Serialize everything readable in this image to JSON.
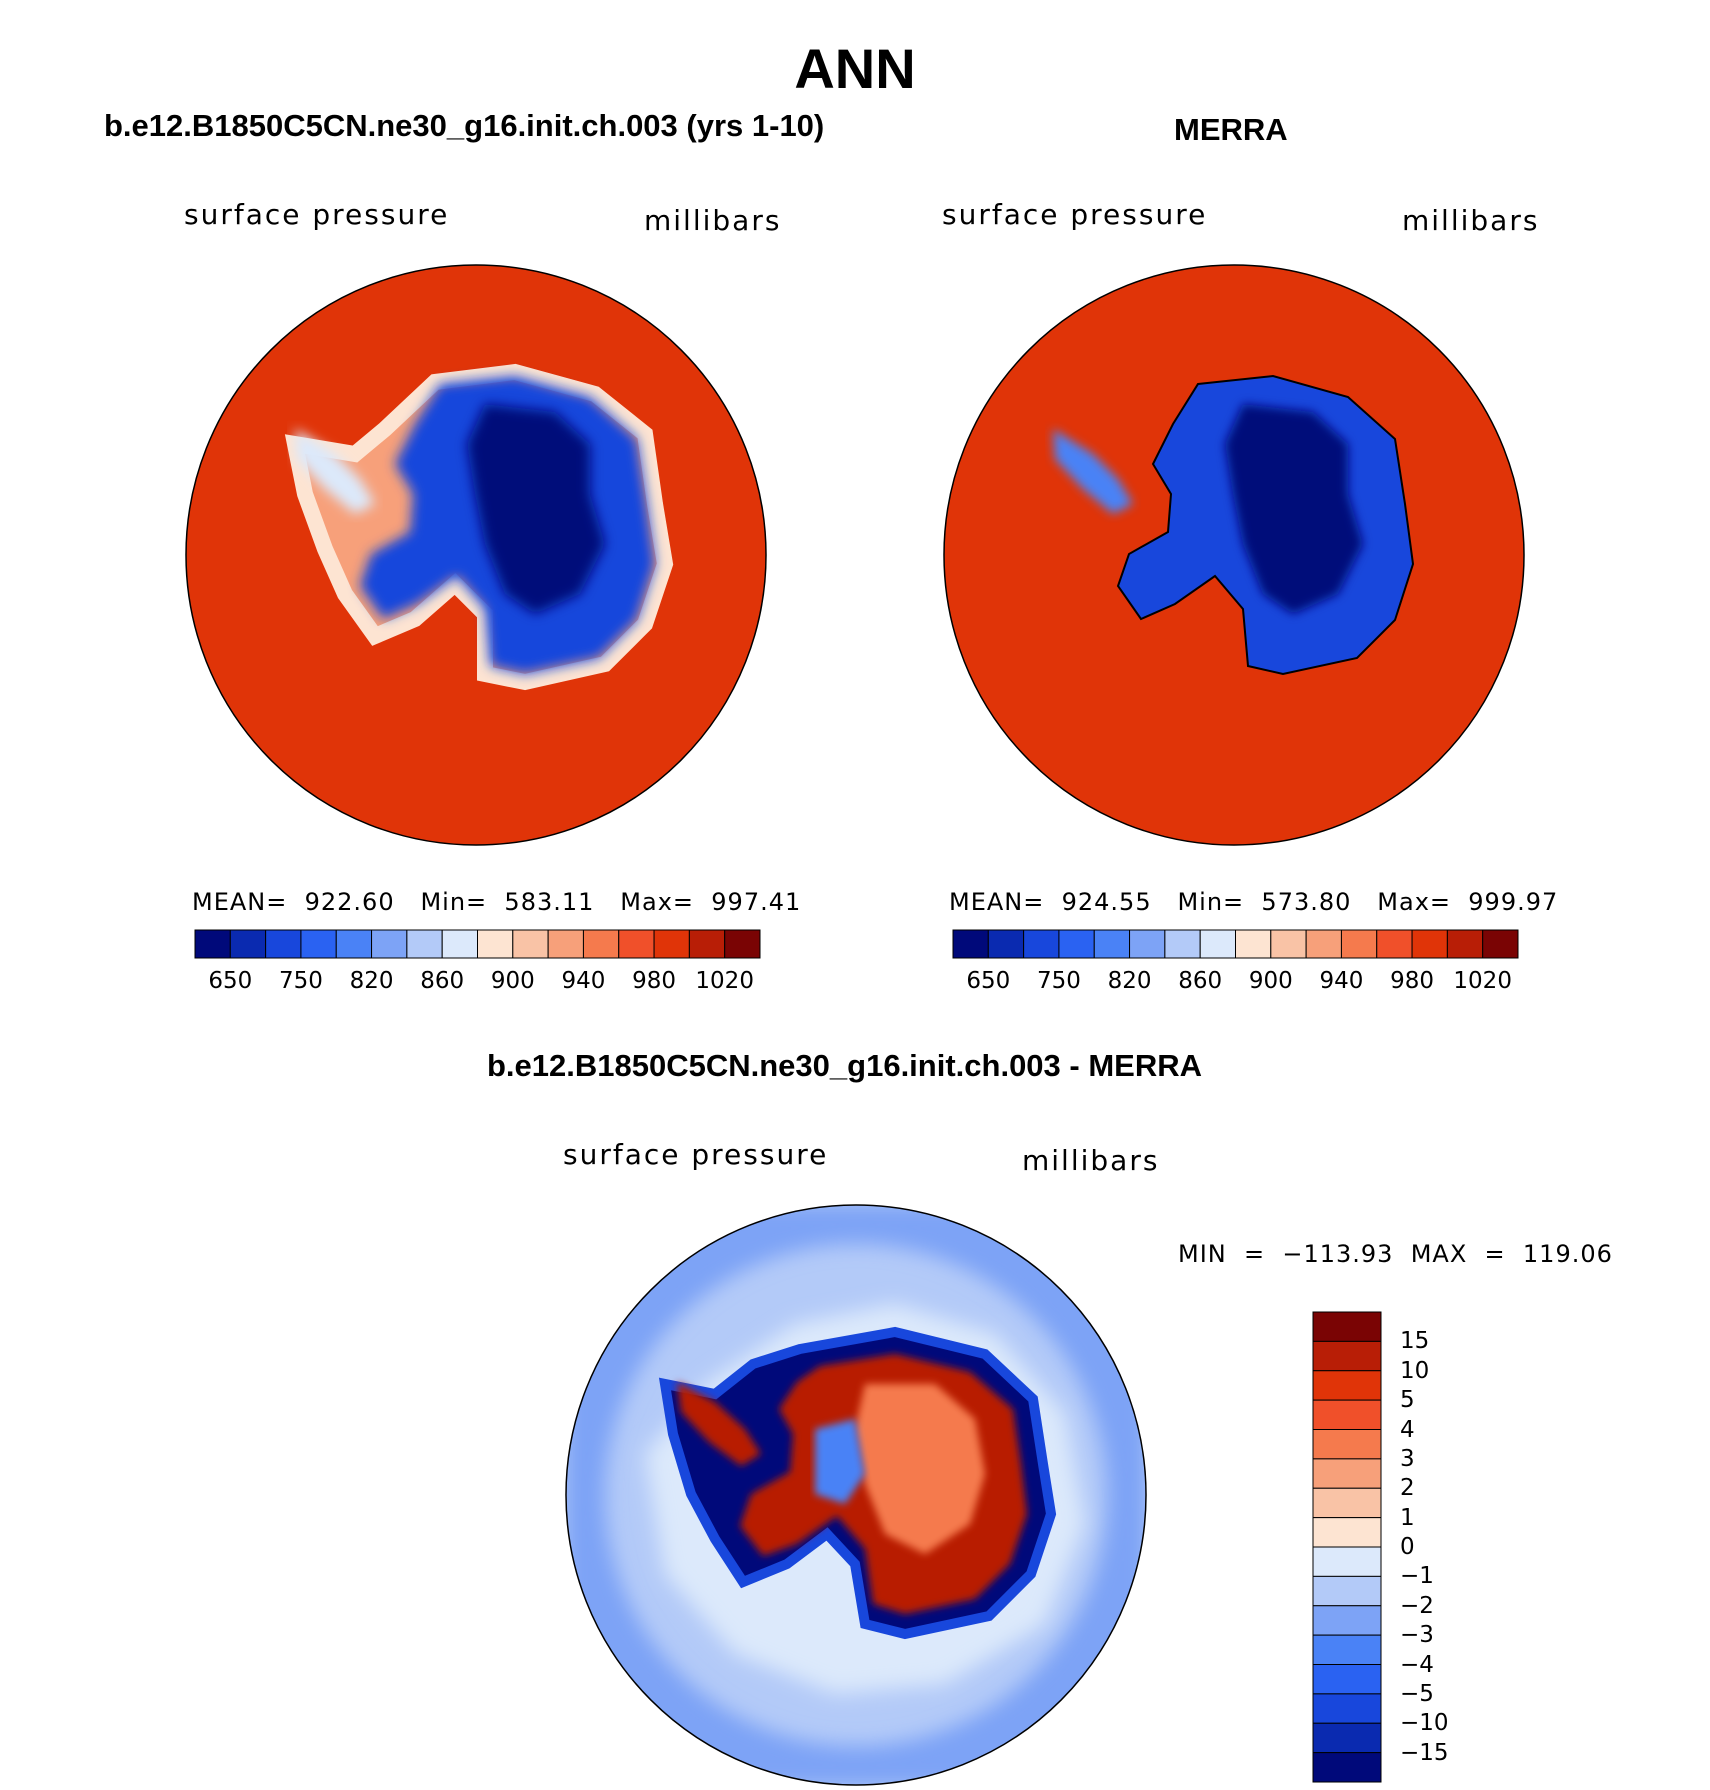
{
  "season": "ANN",
  "panels": [
    {
      "title": "b.e12.B1850C5CN.ne30_g16.init.ch.003 (yrs 1-10)",
      "variable": "surface pressure",
      "units": "millibars",
      "stats_text": "MEAN=  922.60   Min=  583.11   Max=  997.41"
    },
    {
      "title": "MERRA",
      "variable": "surface pressure",
      "units": "millibars",
      "stats_text": "MEAN=  924.55   Min=  573.80   Max=  999.97"
    },
    {
      "title": "b.e12.B1850C5CN.ne30_g16.init.ch.003 - MERRA",
      "variable": "surface pressure",
      "units": "millibars",
      "stats_text": "MIN  =  −113.93  MAX  =  119.06"
    }
  ],
  "colors": {
    "abs_scale": [
      "#00097a",
      "#0a2ab0",
      "#1847dc",
      "#2a62f2",
      "#4a82f6",
      "#7da3f6",
      "#b3caf8",
      "#dce9fb",
      "#fde4d2",
      "#f9c3a6",
      "#f7a07a",
      "#f57a4d",
      "#f0502a",
      "#e03408",
      "#b81e06",
      "#7a0404"
    ],
    "diff_scale": [
      "#00097a",
      "#0a2ab0",
      "#1847dc",
      "#2a62f2",
      "#4a82f6",
      "#7da3f6",
      "#b3caf8",
      "#dce9fb",
      "#fde4d2",
      "#f9c3a6",
      "#f7a07a",
      "#f57a4d",
      "#f0502a",
      "#e03408",
      "#b81e06",
      "#7a0404"
    ],
    "ocean_abs": "#e03408",
    "continent_abs": "#1847dc",
    "plateau_abs": "#00097a"
  },
  "chart_data": [
    {
      "type": "heatmap",
      "projection": "south polar stereographic",
      "field": "surface pressure",
      "units": "millibars",
      "mean": 922.6,
      "min": 583.11,
      "max": 997.41,
      "colorbar_ticks": [
        "650",
        "750",
        "820",
        "860",
        "900",
        "940",
        "980",
        "1020"
      ]
    },
    {
      "type": "heatmap",
      "projection": "south polar stereographic",
      "field": "surface pressure",
      "units": "millibars",
      "mean": 924.55,
      "min": 573.8,
      "max": 999.97,
      "colorbar_ticks": [
        "650",
        "750",
        "820",
        "860",
        "900",
        "940",
        "980",
        "1020"
      ]
    },
    {
      "type": "heatmap",
      "projection": "south polar stereographic",
      "field": "surface pressure difference",
      "units": "millibars",
      "min": -113.93,
      "max": 119.06,
      "colorbar_ticks": [
        "15",
        "10",
        "5",
        "4",
        "3",
        "2",
        "1",
        "0",
        "−1",
        "−2",
        "−3",
        "−4",
        "−5",
        "−10",
        "−15"
      ]
    }
  ]
}
